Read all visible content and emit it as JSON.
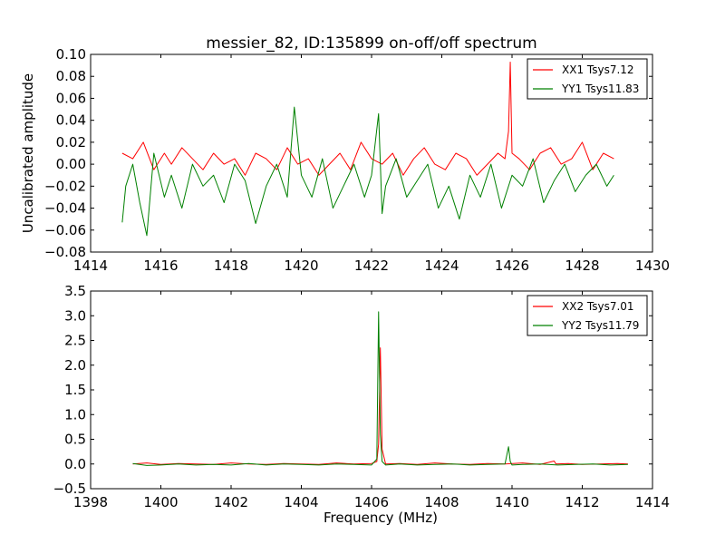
{
  "figure_title": "messier_82, ID:135899 on-off/off spectrum",
  "colors": {
    "xx": "#ff0000",
    "yy": "#008000",
    "frame": "#000000",
    "background": "#ffffff"
  },
  "chart_data": [
    {
      "type": "line",
      "title": "messier_82, ID:135899 on-off/off spectrum",
      "xlabel": "",
      "ylabel": "Uncalibrated amplitude",
      "xlim": [
        1414,
        1430
      ],
      "ylim": [
        -0.08,
        0.1
      ],
      "xticks": [
        1414,
        1416,
        1418,
        1420,
        1422,
        1424,
        1426,
        1428,
        1430
      ],
      "yticks": [
        -0.08,
        -0.06,
        -0.04,
        -0.02,
        0.0,
        0.02,
        0.04,
        0.06,
        0.08,
        0.1
      ],
      "xtick_labels": [
        "1414",
        "1416",
        "1418",
        "1420",
        "1422",
        "1424",
        "1426",
        "1428",
        "1430"
      ],
      "ytick_labels": [
        "−0.08",
        "−0.06",
        "−0.04",
        "−0.02",
        "0.00",
        "0.02",
        "0.04",
        "0.06",
        "0.08",
        "0.10"
      ],
      "legend_position": "top-right",
      "grid": false,
      "series": [
        {
          "name": "XX1 Tsys7.12",
          "color": "#ff0000",
          "x": [
            1414.9,
            1415.2,
            1415.5,
            1415.8,
            1416.1,
            1416.3,
            1416.6,
            1416.9,
            1417.2,
            1417.5,
            1417.8,
            1418.1,
            1418.4,
            1418.7,
            1419.0,
            1419.3,
            1419.6,
            1419.9,
            1420.2,
            1420.5,
            1420.8,
            1421.1,
            1421.4,
            1421.7,
            1422.0,
            1422.3,
            1422.6,
            1422.9,
            1423.2,
            1423.5,
            1423.8,
            1424.1,
            1424.4,
            1424.7,
            1425.0,
            1425.3,
            1425.6,
            1425.8,
            1425.9,
            1425.95,
            1426.0,
            1426.2,
            1426.5,
            1426.8,
            1427.1,
            1427.4,
            1427.7,
            1428.0,
            1428.3,
            1428.6,
            1428.9
          ],
          "y": [
            0.01,
            0.005,
            0.02,
            -0.005,
            0.01,
            0.0,
            0.015,
            0.005,
            -0.005,
            0.01,
            0.0,
            0.005,
            -0.01,
            0.01,
            0.005,
            -0.005,
            0.015,
            0.0,
            0.005,
            -0.01,
            0.0,
            0.01,
            -0.005,
            0.02,
            0.005,
            0.0,
            0.01,
            -0.01,
            0.005,
            0.015,
            0.0,
            -0.005,
            0.01,
            0.005,
            -0.01,
            0.0,
            0.01,
            0.005,
            0.03,
            0.093,
            0.01,
            0.005,
            -0.005,
            0.01,
            0.015,
            0.0,
            0.005,
            0.02,
            -0.005,
            0.01,
            0.005
          ]
        },
        {
          "name": "YY1 Tsys11.83",
          "color": "#008000",
          "x": [
            1414.9,
            1415.0,
            1415.2,
            1415.4,
            1415.6,
            1415.8,
            1416.1,
            1416.3,
            1416.6,
            1416.9,
            1417.2,
            1417.5,
            1417.8,
            1418.1,
            1418.4,
            1418.7,
            1419.0,
            1419.3,
            1419.6,
            1419.8,
            1420.0,
            1420.3,
            1420.6,
            1420.9,
            1421.2,
            1421.5,
            1421.8,
            1422.0,
            1422.2,
            1422.3,
            1422.4,
            1422.7,
            1423.0,
            1423.3,
            1423.6,
            1423.9,
            1424.2,
            1424.5,
            1424.8,
            1425.1,
            1425.4,
            1425.7,
            1426.0,
            1426.3,
            1426.6,
            1426.9,
            1427.2,
            1427.5,
            1427.8,
            1428.1,
            1428.4,
            1428.7,
            1428.9
          ],
          "y": [
            -0.053,
            -0.02,
            0.0,
            -0.035,
            -0.065,
            0.01,
            -0.03,
            -0.01,
            -0.04,
            0.0,
            -0.02,
            -0.01,
            -0.035,
            0.0,
            -0.015,
            -0.054,
            -0.02,
            0.0,
            -0.03,
            0.052,
            -0.01,
            -0.03,
            0.005,
            -0.04,
            -0.02,
            0.0,
            -0.03,
            -0.01,
            0.046,
            -0.045,
            -0.02,
            0.005,
            -0.03,
            -0.015,
            0.0,
            -0.04,
            -0.02,
            -0.05,
            -0.01,
            -0.03,
            0.0,
            -0.04,
            -0.01,
            -0.02,
            0.005,
            -0.035,
            -0.015,
            0.0,
            -0.025,
            -0.01,
            0.0,
            -0.02,
            -0.01
          ]
        }
      ]
    },
    {
      "type": "line",
      "title": "",
      "xlabel": "Frequency (MHz)",
      "ylabel": "",
      "xlim": [
        1398,
        1414
      ],
      "ylim": [
        -0.5,
        3.5
      ],
      "xticks": [
        1398,
        1400,
        1402,
        1404,
        1406,
        1408,
        1410,
        1412,
        1414
      ],
      "yticks": [
        -0.5,
        0.0,
        0.5,
        1.0,
        1.5,
        2.0,
        2.5,
        3.0,
        3.5
      ],
      "xtick_labels": [
        "1398",
        "1400",
        "1402",
        "1404",
        "1406",
        "1408",
        "1410",
        "1412",
        "1414"
      ],
      "ytick_labels": [
        "−0.5",
        "0.0",
        "0.5",
        "1.0",
        "1.5",
        "2.0",
        "2.5",
        "3.0",
        "3.5"
      ],
      "legend_position": "top-right",
      "grid": false,
      "series": [
        {
          "name": "XX2 Tsys7.01",
          "color": "#ff0000",
          "x": [
            1399.2,
            1399.6,
            1400.0,
            1400.5,
            1401.0,
            1401.5,
            1402.0,
            1402.5,
            1403.0,
            1403.5,
            1404.0,
            1404.5,
            1405.0,
            1405.5,
            1406.0,
            1406.15,
            1406.2,
            1406.25,
            1406.3,
            1406.4,
            1406.8,
            1407.3,
            1407.8,
            1408.3,
            1408.8,
            1409.3,
            1409.8,
            1410.3,
            1410.8,
            1411.2,
            1411.25,
            1411.6,
            1412.0,
            1412.5,
            1413.0,
            1413.3
          ],
          "y": [
            0.0,
            0.02,
            -0.01,
            0.01,
            0.0,
            -0.01,
            0.02,
            0.0,
            -0.01,
            0.01,
            0.0,
            -0.01,
            0.02,
            0.0,
            0.01,
            0.05,
            0.4,
            2.35,
            0.3,
            0.0,
            0.01,
            -0.01,
            0.02,
            0.0,
            -0.01,
            0.01,
            0.0,
            0.02,
            -0.01,
            0.06,
            0.0,
            0.01,
            -0.01,
            0.0,
            0.01,
            0.0
          ]
        },
        {
          "name": "YY2 Tsys11.79",
          "color": "#008000",
          "x": [
            1399.2,
            1399.6,
            1400.0,
            1400.5,
            1401.0,
            1401.5,
            1402.0,
            1402.5,
            1403.0,
            1403.5,
            1404.0,
            1404.5,
            1405.0,
            1405.5,
            1406.0,
            1406.15,
            1406.2,
            1406.25,
            1406.3,
            1406.4,
            1406.8,
            1407.3,
            1407.8,
            1408.3,
            1408.8,
            1409.3,
            1409.8,
            1409.9,
            1409.95,
            1410.0,
            1410.3,
            1410.8,
            1411.3,
            1411.8,
            1412.3,
            1412.8,
            1413.3
          ],
          "y": [
            0.01,
            -0.03,
            -0.02,
            0.0,
            -0.02,
            -0.01,
            -0.02,
            0.01,
            -0.02,
            0.0,
            -0.01,
            -0.02,
            0.0,
            -0.01,
            -0.02,
            0.1,
            3.08,
            0.6,
            0.05,
            -0.02,
            0.0,
            -0.02,
            -0.01,
            0.0,
            -0.02,
            -0.01,
            0.0,
            0.35,
            0.05,
            -0.02,
            -0.01,
            0.0,
            -0.02,
            -0.01,
            0.0,
            -0.02,
            -0.01
          ]
        }
      ]
    }
  ]
}
